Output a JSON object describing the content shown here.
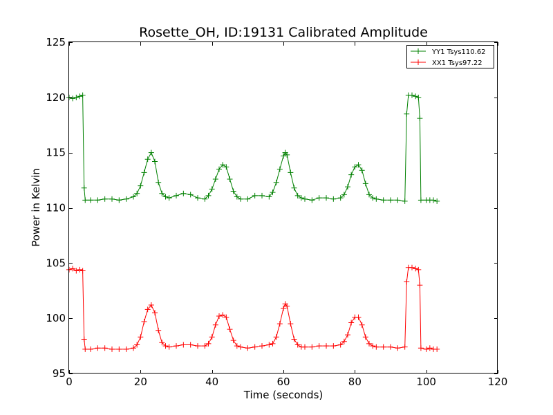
{
  "chart_data": {
    "type": "line",
    "title": "Rosette_OH, ID:19131 Calibrated Amplitude",
    "xlabel": "Time (seconds)",
    "ylabel": "Power in Kelvin",
    "xlim": [
      0,
      120
    ],
    "ylim": [
      95,
      125
    ],
    "xticks": [
      0,
      20,
      40,
      60,
      80,
      100,
      120
    ],
    "yticks": [
      95,
      100,
      105,
      110,
      115,
      120,
      125
    ],
    "xtick_labels": [
      "0",
      "20",
      "40",
      "60",
      "80",
      "100",
      "120"
    ],
    "ytick_labels": [
      "95",
      "100",
      "105",
      "110",
      "115",
      "120",
      "125"
    ],
    "grid": false,
    "legend_position": "top-right",
    "marker": "+",
    "series": [
      {
        "name": "YY1 Tsys110.62",
        "color": "#008000",
        "x": [
          0,
          1,
          2,
          3,
          3.8,
          4.2,
          4.5,
          6,
          8,
          10,
          12,
          14,
          16,
          18,
          19,
          20,
          21,
          22,
          23,
          24,
          25,
          26,
          27,
          28,
          30,
          32,
          34,
          36,
          38,
          39,
          40,
          41,
          42,
          43,
          44,
          45,
          46,
          47,
          48,
          50,
          52,
          54,
          56,
          57,
          58,
          59,
          60,
          60.5,
          61,
          62,
          63,
          64,
          65,
          66,
          68,
          70,
          72,
          74,
          76,
          77,
          78,
          79,
          80,
          81,
          82,
          83,
          84,
          85,
          86,
          88,
          90,
          92,
          94,
          94.5,
          95,
          96,
          97,
          97.8,
          98.2,
          98.5,
          100,
          101,
          102,
          103
        ],
        "y": [
          120,
          119.9,
          120,
          120.1,
          120.2,
          111.8,
          110.7,
          110.7,
          110.7,
          110.8,
          110.8,
          110.7,
          110.8,
          111,
          111.3,
          112,
          113.2,
          114.4,
          115,
          114.2,
          112.3,
          111.3,
          111,
          110.9,
          111.1,
          111.3,
          111.2,
          110.9,
          110.8,
          111.1,
          111.7,
          112.6,
          113.5,
          113.9,
          113.7,
          112.6,
          111.5,
          111,
          110.8,
          110.8,
          111.1,
          111.1,
          111,
          111.4,
          112.3,
          113.5,
          114.7,
          115,
          114.8,
          113.2,
          111.8,
          111.1,
          110.9,
          110.8,
          110.7,
          110.9,
          110.9,
          110.8,
          110.9,
          111.2,
          111.9,
          113,
          113.7,
          113.9,
          113.4,
          112.2,
          111.2,
          110.9,
          110.8,
          110.7,
          110.7,
          110.7,
          110.6,
          118.5,
          120.2,
          120.2,
          120.1,
          120,
          118.1,
          110.7,
          110.7,
          110.7,
          110.7,
          110.6
        ]
      },
      {
        "name": "XX1 Tsys97.22",
        "color": "#ff0000",
        "x": [
          0,
          1,
          2,
          3,
          3.8,
          4.2,
          4.5,
          6,
          8,
          10,
          12,
          14,
          16,
          18,
          19,
          20,
          21,
          22,
          23,
          24,
          25,
          26,
          27,
          28,
          30,
          32,
          34,
          36,
          38,
          39,
          40,
          41,
          42,
          43,
          44,
          45,
          46,
          47,
          48,
          50,
          52,
          54,
          56,
          57,
          58,
          59,
          60,
          60.5,
          61,
          62,
          63,
          64,
          65,
          66,
          68,
          70,
          72,
          74,
          76,
          77,
          78,
          79,
          80,
          81,
          82,
          83,
          84,
          85,
          86,
          88,
          90,
          92,
          94,
          94.5,
          95,
          96,
          97,
          97.8,
          98.2,
          98.5,
          100,
          101,
          102,
          103
        ],
        "y": [
          104.4,
          104.5,
          104.3,
          104.4,
          104.3,
          98.1,
          97.2,
          97.2,
          97.3,
          97.3,
          97.2,
          97.2,
          97.2,
          97.3,
          97.6,
          98.3,
          99.7,
          100.8,
          101.2,
          100.5,
          98.9,
          97.8,
          97.5,
          97.4,
          97.5,
          97.6,
          97.6,
          97.5,
          97.5,
          97.7,
          98.3,
          99.4,
          100.2,
          100.3,
          100.1,
          99,
          98,
          97.5,
          97.4,
          97.3,
          97.4,
          97.5,
          97.6,
          97.7,
          98.3,
          99.5,
          100.9,
          101.3,
          101.1,
          99.5,
          98.1,
          97.6,
          97.4,
          97.4,
          97.4,
          97.5,
          97.5,
          97.5,
          97.6,
          97.9,
          98.5,
          99.6,
          100.1,
          100.1,
          99.4,
          98.3,
          97.7,
          97.5,
          97.4,
          97.4,
          97.4,
          97.3,
          97.4,
          103.3,
          104.6,
          104.6,
          104.5,
          104.4,
          103,
          97.3,
          97.2,
          97.3,
          97.2,
          97.2
        ]
      }
    ]
  }
}
